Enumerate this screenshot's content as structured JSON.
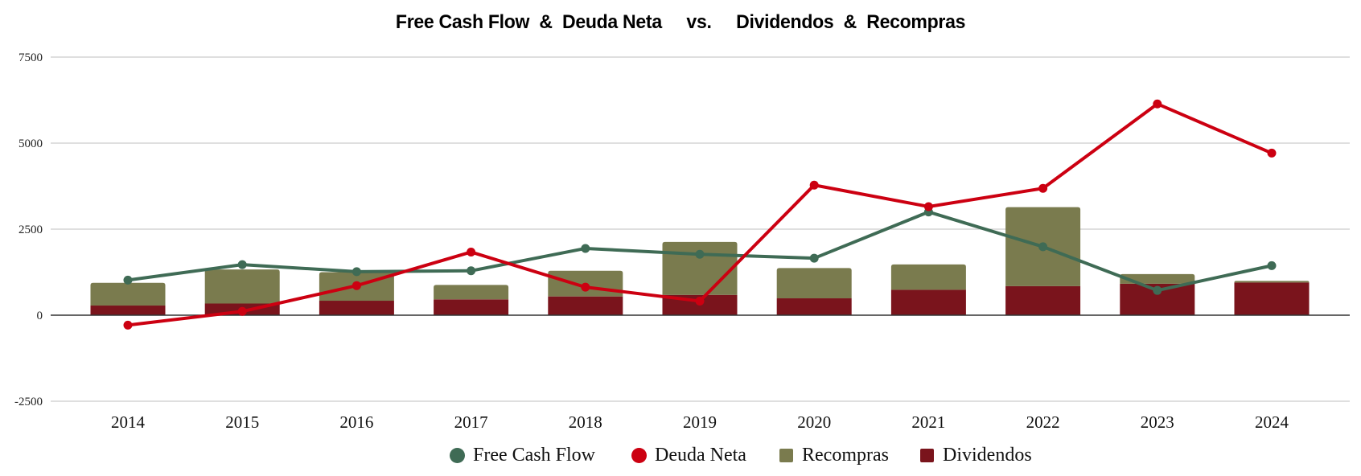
{
  "chart_data": {
    "type": "bar",
    "subtype": "stacked bar + line combo",
    "title": "Free Cash Flow  &  Deuda Neta     vs.     Dividendos  &  Recompras",
    "xlabel": "",
    "ylabel": "",
    "categories": [
      "2014",
      "2015",
      "2016",
      "2017",
      "2018",
      "2019",
      "2020",
      "2021",
      "2022",
      "2023",
      "2024"
    ],
    "ylim": [
      -2500,
      7500
    ],
    "yticks": [
      -2500,
      0,
      2500,
      5000,
      7500
    ],
    "ytick_labels": [
      "-2500",
      "0",
      "2500",
      "5000",
      "7500"
    ],
    "grid": true,
    "legend_position": "bottom",
    "bar_series": [
      {
        "name": "Dividendos",
        "color": "#7a141c",
        "values": [
          280,
          340,
          420,
          460,
          545,
          590,
          490,
          740,
          845,
          915,
          950
        ]
      },
      {
        "name": "Recompras",
        "color": "#7a7b4e",
        "values": [
          660,
          990,
          830,
          420,
          745,
          1540,
          880,
          735,
          2295,
          280,
          45
        ]
      }
    ],
    "line_series": [
      {
        "name": "Free Cash Flow",
        "color": "#3f6b55",
        "values": [
          1020,
          1470,
          1265,
          1290,
          1940,
          1770,
          1655,
          3000,
          1990,
          720,
          1440
        ]
      },
      {
        "name": "Deuda Neta",
        "color": "#cc0011",
        "values": [
          -290,
          110,
          860,
          1835,
          815,
          410,
          3780,
          3155,
          3685,
          6140,
          4710
        ]
      }
    ],
    "legend": [
      {
        "label": "Free Cash Flow",
        "color": "#3f6b55",
        "shape": "circle"
      },
      {
        "label": "Deuda Neta",
        "color": "#cc0011",
        "shape": "circle"
      },
      {
        "label": "Recompras",
        "color": "#7a7b4e",
        "shape": "square"
      },
      {
        "label": "Dividendos",
        "color": "#7a141c",
        "shape": "square"
      }
    ]
  },
  "colors": {
    "gridline": "#cccccc",
    "zero_axis": "#333333",
    "background": "#ffffff"
  }
}
